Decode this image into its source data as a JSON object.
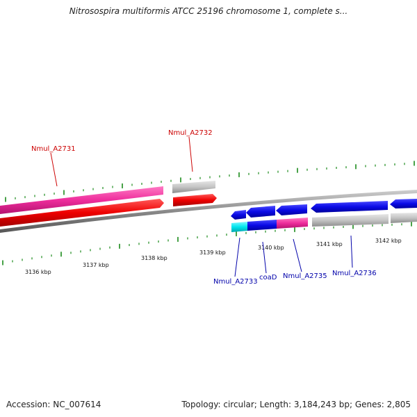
{
  "title": "Nitrosospira multiformis ATCC 25196 chromosome 1, complete s...",
  "footer": {
    "accession": "Accession: NC_007614",
    "summary": "Topology: circular; Length: 3,184,243 bp; Genes: 2,805"
  },
  "scale": {
    "ticks": [
      "3136 kbp",
      "3137 kbp",
      "3138 kbp",
      "3139 kbp",
      "3140 kbp",
      "3141 kbp",
      "3142 kbp"
    ]
  },
  "genes": {
    "upper": [
      {
        "label": "Nmul_A2731",
        "color": "#cc0000"
      },
      {
        "label": "Nmul_A2732",
        "color": "#cc0000"
      }
    ],
    "lower": [
      {
        "label": "Nmul_A2733",
        "color": "#0000aa"
      },
      {
        "label": "coaD",
        "color": "#0000aa"
      },
      {
        "label": "Nmul_A2735",
        "color": "#0000aa"
      },
      {
        "label": "Nmul_A2736",
        "color": "#0000aa"
      }
    ]
  },
  "colors": {
    "forward_gene": "#ee0000",
    "forward_cds": "#ee2d9c",
    "reverse_gene": "#0a0ae6",
    "reverse_cds_cyan": "#00e5ee",
    "reverse_cds_pink": "#ee2d9c",
    "pseudo": "#bdbdbd",
    "backbone": "#888888",
    "tick": "#1a8a1a"
  }
}
